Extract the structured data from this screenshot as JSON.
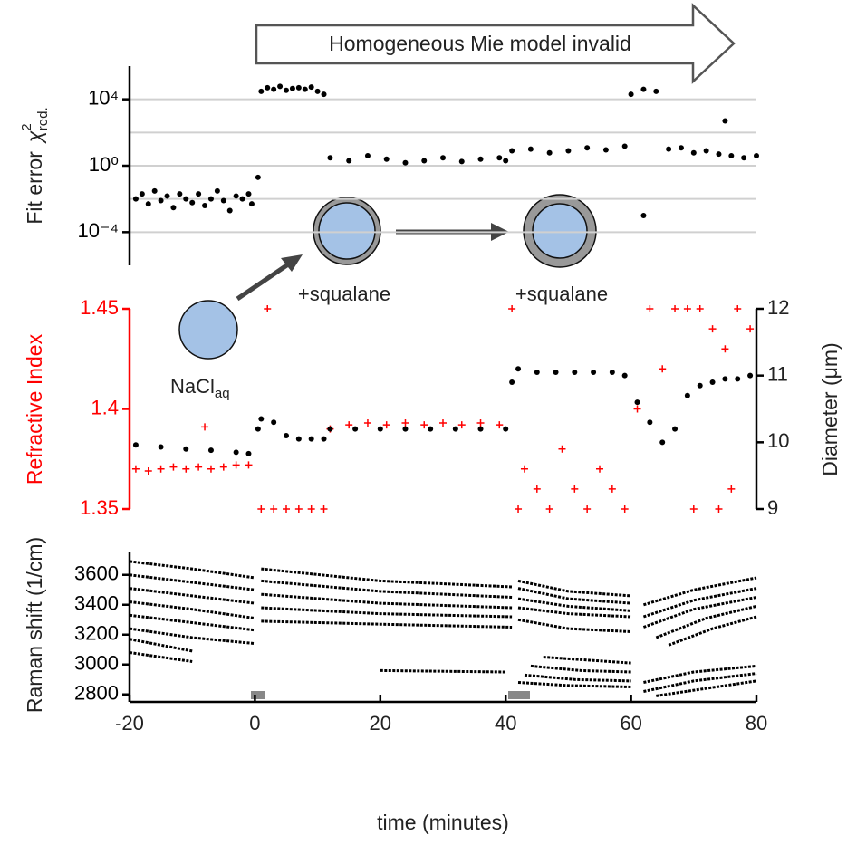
{
  "chart_data": [
    {
      "type": "scatter",
      "ylabel": {
        "text": "Fit error",
        "symbol": "χ",
        "superscript": "2",
        "subscript": "red."
      },
      "annotation": "Homogeneous Mie model  invalid",
      "xlim": [
        -20,
        80
      ],
      "ylim": [
        1e-06,
        1000000
      ],
      "log_y": true,
      "yticks": [
        {
          "value": 0.0001,
          "label": "10⁻⁴"
        },
        {
          "value": 1,
          "label": "10⁰"
        },
        {
          "value": 10000,
          "label": "10⁴"
        }
      ],
      "grid_values": [
        0.0001,
        0.01,
        1,
        100,
        10000
      ],
      "series": [
        {
          "color": "#000000",
          "marker": "o",
          "x": [
            -19,
            -18,
            -17,
            -16,
            -15,
            -14,
            -13,
            -12,
            -11,
            -10,
            -9,
            -8,
            -7,
            -6,
            -5,
            -4,
            -3,
            -2,
            -1,
            -0.5,
            0.5,
            1,
            2,
            3,
            4,
            5,
            6,
            7,
            8,
            9,
            10,
            11,
            12,
            15,
            18,
            21,
            24,
            27,
            30,
            33,
            36,
            39,
            40,
            41,
            44,
            47,
            50,
            53,
            56,
            59,
            60,
            62,
            64,
            66,
            68,
            70,
            72,
            74,
            76,
            78,
            80,
            75,
            62
          ],
          "values": [
            0.01,
            0.02,
            0.005,
            0.03,
            0.008,
            0.015,
            0.003,
            0.02,
            0.01,
            0.006,
            0.02,
            0.004,
            0.01,
            0.03,
            0.008,
            0.002,
            0.015,
            0.01,
            0.02,
            0.005,
            0.2,
            30000,
            50000,
            40000,
            60000,
            35000,
            45000,
            50000,
            40000,
            55000,
            30000,
            20000,
            3,
            2,
            4,
            2.5,
            1.5,
            2,
            3,
            1.8,
            2.5,
            3,
            2,
            8,
            10,
            6,
            8,
            12,
            9,
            15,
            20000,
            40000,
            30000,
            10,
            12,
            6,
            8,
            5,
            4,
            3,
            4,
            500,
            0.001
          ]
        }
      ]
    },
    {
      "type": "scatter",
      "ylabel": "Refractive Index",
      "y2label": "Diameter (μm)",
      "annotations": [
        {
          "text": "+squalane"
        },
        {
          "text": "+squalane"
        },
        {
          "text": "NaCl",
          "subscript": "aq"
        }
      ],
      "xlim": [
        -20,
        80
      ],
      "ylim": [
        1.35,
        1.45
      ],
      "yticks": [
        1.35,
        1.4,
        1.45
      ],
      "y2lim": [
        9,
        12
      ],
      "y2ticks": [
        9,
        10,
        11,
        12
      ],
      "series": [
        {
          "color": "#ff0000",
          "marker": "+",
          "x": [
            -19,
            -17,
            -15,
            -13,
            -11,
            -9,
            -7,
            -5,
            -3,
            -1,
            -8,
            1,
            3,
            5,
            7,
            9,
            11,
            2,
            12,
            15,
            18,
            21,
            24,
            27,
            30,
            33,
            36,
            39,
            41,
            42,
            43,
            45,
            47,
            49,
            51,
            53,
            55,
            57,
            59,
            61,
            63,
            65,
            67,
            69,
            71,
            73,
            75,
            77,
            79,
            70,
            74,
            76
          ],
          "values": [
            1.37,
            1.369,
            1.37,
            1.371,
            1.37,
            1.371,
            1.37,
            1.371,
            1.372,
            1.372,
            1.391,
            1.35,
            1.35,
            1.35,
            1.35,
            1.35,
            1.35,
            1.45,
            1.39,
            1.392,
            1.393,
            1.392,
            1.393,
            1.392,
            1.393,
            1.392,
            1.393,
            1.392,
            1.45,
            1.35,
            1.37,
            1.36,
            1.35,
            1.38,
            1.36,
            1.35,
            1.37,
            1.36,
            1.35,
            1.4,
            1.45,
            1.42,
            1.45,
            1.45,
            1.45,
            1.44,
            1.43,
            1.45,
            1.44,
            1.35,
            1.35,
            1.36
          ]
        },
        {
          "color": "#000000",
          "marker": "o",
          "axis": "y2",
          "x": [
            -19,
            -15,
            -11,
            -7,
            -3,
            -1,
            0.5,
            1,
            3,
            5,
            7,
            9,
            11,
            12,
            16,
            20,
            24,
            28,
            32,
            36,
            40,
            41,
            42,
            45,
            48,
            51,
            54,
            57,
            59,
            61,
            63,
            65,
            67,
            69,
            71,
            73,
            75,
            77,
            79
          ],
          "values": [
            9.96,
            9.93,
            9.9,
            9.88,
            9.85,
            9.83,
            10.2,
            10.35,
            10.3,
            10.1,
            10.05,
            10.05,
            10.05,
            10.2,
            10.2,
            10.2,
            10.2,
            10.2,
            10.2,
            10.2,
            10.2,
            10.9,
            11.1,
            11.05,
            11.05,
            11.05,
            11.05,
            11.05,
            11,
            10.6,
            10.3,
            10,
            10.2,
            10.7,
            10.85,
            10.9,
            10.95,
            10.95,
            11
          ]
        }
      ]
    },
    {
      "type": "line",
      "ylabel": "Raman shift (1/cm)",
      "xlabel": "time (minutes)",
      "xlim": [
        -20,
        80
      ],
      "xticks": [
        -20,
        0,
        20,
        40,
        60,
        80
      ],
      "ylim": [
        2750,
        3750
      ],
      "yticks": [
        2800,
        3000,
        3200,
        3400,
        3600
      ],
      "series": [
        {
          "color": "#000000",
          "x": [
            -20,
            -10,
            0
          ],
          "values": [
            3690,
            3640,
            3580
          ]
        },
        {
          "color": "#000000",
          "x": [
            -20,
            -10,
            0
          ],
          "values": [
            3600,
            3550,
            3500
          ]
        },
        {
          "color": "#000000",
          "x": [
            -20,
            -10,
            0
          ],
          "values": [
            3510,
            3460,
            3410
          ]
        },
        {
          "color": "#000000",
          "x": [
            -20,
            -10,
            0
          ],
          "values": [
            3420,
            3370,
            3310
          ]
        },
        {
          "color": "#000000",
          "x": [
            -20,
            -10,
            0
          ],
          "values": [
            3330,
            3280,
            3230
          ]
        },
        {
          "color": "#000000",
          "x": [
            -20,
            -10,
            0
          ],
          "values": [
            3240,
            3180,
            3140
          ]
        },
        {
          "color": "#000000",
          "x": [
            -20,
            -10
          ],
          "values": [
            3170,
            3090
          ]
        },
        {
          "color": "#000000",
          "x": [
            -20,
            -10
          ],
          "values": [
            3080,
            3020
          ]
        },
        {
          "color": "#000000",
          "x": [
            1,
            20,
            41
          ],
          "values": [
            3640,
            3560,
            3520
          ]
        },
        {
          "color": "#000000",
          "x": [
            1,
            20,
            41
          ],
          "values": [
            3560,
            3490,
            3450
          ]
        },
        {
          "color": "#000000",
          "x": [
            1,
            20,
            41
          ],
          "values": [
            3470,
            3410,
            3380
          ]
        },
        {
          "color": "#000000",
          "x": [
            1,
            20,
            41
          ],
          "values": [
            3380,
            3340,
            3320
          ]
        },
        {
          "color": "#000000",
          "x": [
            1,
            20,
            41
          ],
          "values": [
            3290,
            3270,
            3250
          ]
        },
        {
          "color": "#000000",
          "x": [
            20,
            40
          ],
          "values": [
            2960,
            2950
          ]
        },
        {
          "color": "#000000",
          "x": [
            42,
            50,
            60
          ],
          "values": [
            3560,
            3490,
            3460
          ]
        },
        {
          "color": "#000000",
          "x": [
            42,
            50,
            60
          ],
          "values": [
            3510,
            3440,
            3410
          ]
        },
        {
          "color": "#000000",
          "x": [
            42,
            50,
            60
          ],
          "values": [
            3440,
            3390,
            3360
          ]
        },
        {
          "color": "#000000",
          "x": [
            42,
            50,
            60
          ],
          "values": [
            3380,
            3340,
            3320
          ]
        },
        {
          "color": "#000000",
          "x": [
            42,
            50,
            60
          ],
          "values": [
            3300,
            3240,
            3220
          ]
        },
        {
          "color": "#000000",
          "x": [
            46,
            53,
            60
          ],
          "values": [
            3050,
            3030,
            3010
          ]
        },
        {
          "color": "#000000",
          "x": [
            44,
            52,
            60
          ],
          "values": [
            2990,
            2960,
            2950
          ]
        },
        {
          "color": "#000000",
          "x": [
            43,
            51,
            60
          ],
          "values": [
            2930,
            2900,
            2890
          ]
        },
        {
          "color": "#000000",
          "x": [
            42,
            50,
            60
          ],
          "values": [
            2880,
            2860,
            2850
          ]
        },
        {
          "color": "#000000",
          "x": [
            62,
            70,
            80
          ],
          "values": [
            3400,
            3500,
            3580
          ]
        },
        {
          "color": "#000000",
          "x": [
            62,
            70,
            80
          ],
          "values": [
            3320,
            3430,
            3510
          ]
        },
        {
          "color": "#000000",
          "x": [
            62,
            70,
            80
          ],
          "values": [
            3250,
            3370,
            3450
          ]
        },
        {
          "color": "#000000",
          "x": [
            64,
            72,
            80
          ],
          "values": [
            3180,
            3310,
            3390
          ]
        },
        {
          "color": "#000000",
          "x": [
            66,
            73,
            80
          ],
          "values": [
            3130,
            3240,
            3320
          ]
        },
        {
          "color": "#000000",
          "x": [
            62,
            70,
            80
          ],
          "values": [
            2880,
            2950,
            2990
          ]
        },
        {
          "color": "#000000",
          "x": [
            62,
            70,
            80
          ],
          "values": [
            2820,
            2890,
            2940
          ]
        },
        {
          "color": "#000000",
          "x": [
            64,
            72,
            80
          ],
          "values": [
            2790,
            2840,
            2890
          ]
        }
      ]
    }
  ]
}
